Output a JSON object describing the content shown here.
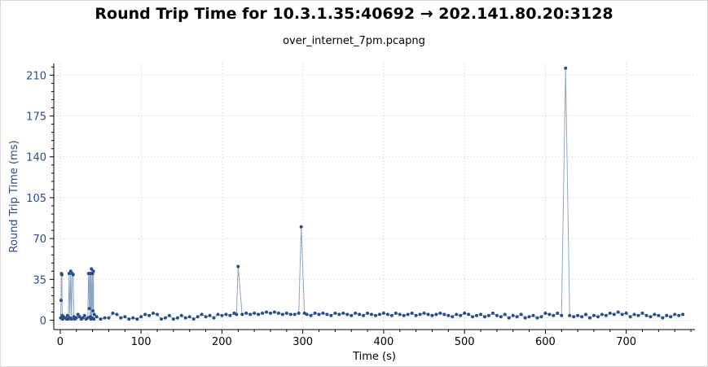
{
  "title": "Round Trip Time for 10.3.1.35:40692 → 202.141.80.20:3128",
  "subtitle": "over_internet_7pm.pcapng",
  "colors": {
    "series": "#2a4e86",
    "line": "#8fa4c2",
    "grid": "#c8c8c8"
  },
  "chart_data": {
    "type": "scatter",
    "xlabel": "Time (s)",
    "ylabel": "Round Trip Time (ms)",
    "xlim": [
      -8,
      785
    ],
    "ylim": [
      -8,
      220
    ],
    "xticks": [
      "0",
      "100",
      "200",
      "300",
      "400",
      "500",
      "600",
      "700"
    ],
    "yticks": [
      "0",
      "35",
      "70",
      "105",
      "140",
      "175",
      "210"
    ],
    "grid": true,
    "connected": true,
    "series": [
      {
        "points": [
          [
            0.5,
            2
          ],
          [
            1,
            17
          ],
          [
            1.5,
            40
          ],
          [
            2,
            39
          ],
          [
            2.5,
            4
          ],
          [
            3,
            1
          ],
          [
            4,
            3
          ],
          [
            6,
            2
          ],
          [
            8,
            1
          ],
          [
            9,
            4
          ],
          [
            10,
            1
          ],
          [
            11,
            40
          ],
          [
            12,
            2
          ],
          [
            13,
            42
          ],
          [
            14,
            1
          ],
          [
            15,
            40
          ],
          [
            16,
            39
          ],
          [
            17,
            3
          ],
          [
            18,
            1
          ],
          [
            20,
            2
          ],
          [
            22,
            5
          ],
          [
            24,
            3
          ],
          [
            26,
            1
          ],
          [
            28,
            2
          ],
          [
            30,
            4
          ],
          [
            32,
            1
          ],
          [
            34,
            2
          ],
          [
            35,
            40
          ],
          [
            36,
            10
          ],
          [
            36.5,
            40
          ],
          [
            37,
            3
          ],
          [
            37.5,
            40
          ],
          [
            38,
            1
          ],
          [
            38.5,
            44
          ],
          [
            39,
            2
          ],
          [
            40,
            40
          ],
          [
            40.5,
            8
          ],
          [
            41,
            42
          ],
          [
            41.5,
            1
          ],
          [
            42,
            5
          ],
          [
            45,
            3
          ],
          [
            50,
            1
          ],
          [
            55,
            2
          ],
          [
            60,
            2
          ],
          [
            65,
            6
          ],
          [
            70,
            5
          ],
          [
            75,
            2
          ],
          [
            80,
            3
          ],
          [
            85,
            1
          ],
          [
            90,
            2
          ],
          [
            95,
            1
          ],
          [
            100,
            3
          ],
          [
            105,
            5
          ],
          [
            110,
            4
          ],
          [
            115,
            6
          ],
          [
            120,
            5
          ],
          [
            125,
            1
          ],
          [
            130,
            2
          ],
          [
            135,
            4
          ],
          [
            140,
            1
          ],
          [
            145,
            2
          ],
          [
            150,
            4
          ],
          [
            155,
            2
          ],
          [
            160,
            3
          ],
          [
            165,
            1
          ],
          [
            170,
            3
          ],
          [
            175,
            5
          ],
          [
            180,
            3
          ],
          [
            185,
            4
          ],
          [
            190,
            2
          ],
          [
            195,
            5
          ],
          [
            200,
            4
          ],
          [
            205,
            5
          ],
          [
            210,
            4
          ],
          [
            215,
            6
          ],
          [
            218,
            5
          ],
          [
            220,
            46
          ],
          [
            225,
            5
          ],
          [
            230,
            6
          ],
          [
            235,
            5
          ],
          [
            240,
            6
          ],
          [
            245,
            5
          ],
          [
            250,
            6
          ],
          [
            255,
            7
          ],
          [
            260,
            6
          ],
          [
            265,
            7
          ],
          [
            270,
            6
          ],
          [
            275,
            5
          ],
          [
            280,
            6
          ],
          [
            285,
            5
          ],
          [
            290,
            5
          ],
          [
            295,
            6
          ],
          [
            298,
            80
          ],
          [
            302,
            6
          ],
          [
            305,
            5
          ],
          [
            310,
            4
          ],
          [
            315,
            6
          ],
          [
            320,
            5
          ],
          [
            325,
            6
          ],
          [
            330,
            5
          ],
          [
            335,
            4
          ],
          [
            340,
            6
          ],
          [
            345,
            5
          ],
          [
            350,
            6
          ],
          [
            355,
            5
          ],
          [
            360,
            4
          ],
          [
            365,
            6
          ],
          [
            370,
            5
          ],
          [
            375,
            4
          ],
          [
            380,
            6
          ],
          [
            385,
            5
          ],
          [
            390,
            4
          ],
          [
            395,
            5
          ],
          [
            400,
            6
          ],
          [
            405,
            5
          ],
          [
            410,
            4
          ],
          [
            415,
            6
          ],
          [
            420,
            5
          ],
          [
            425,
            4
          ],
          [
            430,
            5
          ],
          [
            435,
            6
          ],
          [
            440,
            4
          ],
          [
            445,
            5
          ],
          [
            450,
            6
          ],
          [
            455,
            5
          ],
          [
            460,
            4
          ],
          [
            465,
            5
          ],
          [
            470,
            6
          ],
          [
            475,
            5
          ],
          [
            480,
            4
          ],
          [
            485,
            3
          ],
          [
            490,
            5
          ],
          [
            495,
            4
          ],
          [
            500,
            6
          ],
          [
            505,
            5
          ],
          [
            510,
            3
          ],
          [
            515,
            4
          ],
          [
            520,
            5
          ],
          [
            525,
            3
          ],
          [
            530,
            4
          ],
          [
            535,
            6
          ],
          [
            540,
            4
          ],
          [
            545,
            3
          ],
          [
            550,
            5
          ],
          [
            555,
            2
          ],
          [
            560,
            4
          ],
          [
            565,
            3
          ],
          [
            570,
            5
          ],
          [
            575,
            2
          ],
          [
            580,
            3
          ],
          [
            585,
            4
          ],
          [
            590,
            2
          ],
          [
            595,
            3
          ],
          [
            600,
            6
          ],
          [
            605,
            5
          ],
          [
            610,
            4
          ],
          [
            615,
            6
          ],
          [
            620,
            4
          ],
          [
            625,
            216
          ],
          [
            630,
            4
          ],
          [
            635,
            3
          ],
          [
            640,
            4
          ],
          [
            645,
            3
          ],
          [
            650,
            5
          ],
          [
            655,
            2
          ],
          [
            660,
            4
          ],
          [
            665,
            3
          ],
          [
            670,
            5
          ],
          [
            675,
            4
          ],
          [
            680,
            6
          ],
          [
            685,
            5
          ],
          [
            690,
            7
          ],
          [
            695,
            5
          ],
          [
            700,
            6
          ],
          [
            705,
            3
          ],
          [
            710,
            5
          ],
          [
            715,
            4
          ],
          [
            720,
            6
          ],
          [
            725,
            4
          ],
          [
            730,
            3
          ],
          [
            735,
            5
          ],
          [
            740,
            4
          ],
          [
            745,
            2
          ],
          [
            750,
            4
          ],
          [
            755,
            3
          ],
          [
            760,
            5
          ],
          [
            765,
            4
          ],
          [
            770,
            5
          ]
        ]
      }
    ]
  }
}
